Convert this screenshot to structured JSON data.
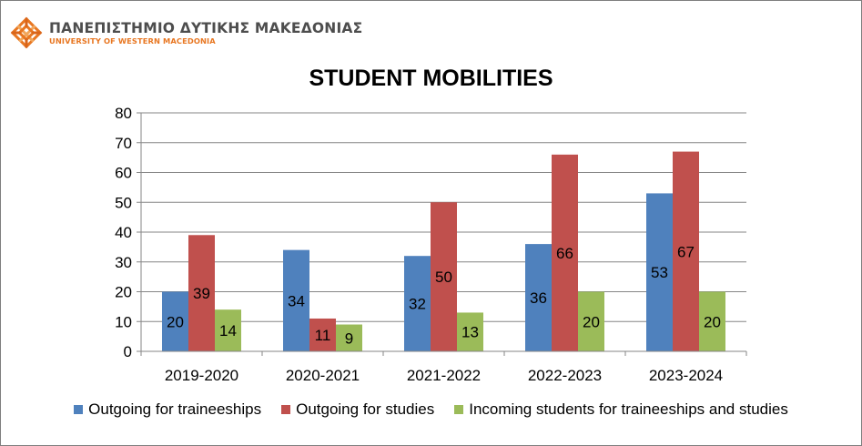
{
  "header": {
    "logo_greek": "ΠΑΝΕΠΙΣΤΗΜΙΟ ΔΥΤΙΚΗΣ ΜΑΚΕΔΟΝΙΑΣ",
    "logo_english": "UNIVERSITY OF WESTERN MACEDONIA",
    "logo_icon": "university-knot-logo-icon"
  },
  "chart_data": {
    "type": "bar",
    "title": "STUDENT MOBILITIES",
    "xlabel": "",
    "ylabel": "",
    "categories": [
      "2019-2020",
      "2020-2021",
      "2021-2022",
      "2022-2023",
      "2023-2024"
    ],
    "series": [
      {
        "name": "Outgoing for traineeships",
        "color": "#4f81bd",
        "values": [
          20,
          34,
          32,
          36,
          53
        ]
      },
      {
        "name": "Outgoing for studies",
        "color": "#c0504d",
        "values": [
          39,
          11,
          50,
          66,
          67
        ]
      },
      {
        "name": "Incoming students for traineeships and studies",
        "color": "#9bbb59",
        "values": [
          14,
          9,
          13,
          20,
          20
        ]
      }
    ],
    "ylim": [
      0,
      80
    ],
    "yticks": [
      0,
      10,
      20,
      30,
      40,
      50,
      60,
      70,
      80
    ],
    "grid": true,
    "legend_position": "bottom",
    "data_labels": true
  }
}
